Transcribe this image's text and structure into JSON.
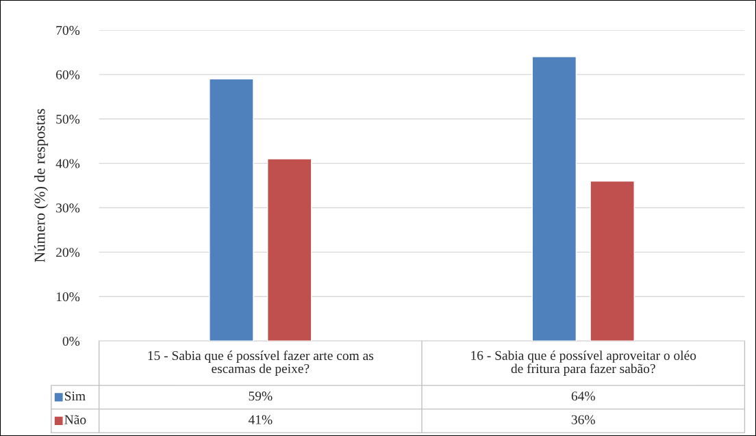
{
  "chart_data": {
    "type": "bar",
    "categories": [
      "15 - Sabia que é possível fazer arte com as escamas de peixe?",
      "16 - Sabia que é possível aproveitar o oléo de fritura para fazer sabão?"
    ],
    "series": [
      {
        "name": "Sim",
        "color": "#4f81bd",
        "values": [
          59,
          64
        ],
        "value_labels": [
          "59%",
          "64%"
        ]
      },
      {
        "name": "Não",
        "color": "#c0504d",
        "values": [
          41,
          36
        ],
        "value_labels": [
          "41%",
          "36%"
        ]
      }
    ],
    "ylabel": "Número (%) de respostas",
    "ylim": [
      0,
      70
    ],
    "yticks": [
      {
        "value": 0,
        "label": "0%"
      },
      {
        "value": 10,
        "label": "10%"
      },
      {
        "value": 20,
        "label": "20%"
      },
      {
        "value": 30,
        "label": "30%"
      },
      {
        "value": 40,
        "label": "40%"
      },
      {
        "value": 50,
        "label": "50%"
      },
      {
        "value": 60,
        "label": "60%"
      },
      {
        "value": 70,
        "label": "70%"
      }
    ],
    "grid": "y",
    "legend": "bottom"
  }
}
